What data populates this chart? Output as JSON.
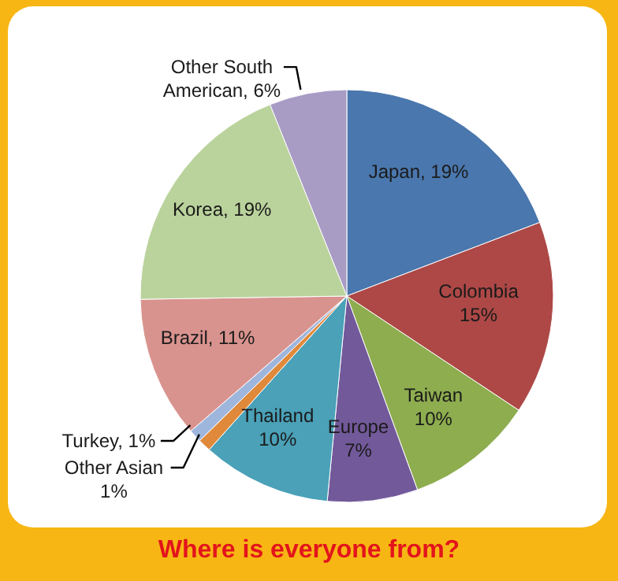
{
  "chart_data": {
    "type": "pie",
    "title": "Where is everyone from?",
    "categories": [
      "Japan",
      "Colombia",
      "Taiwan",
      "Europe",
      "Thailand",
      "Other Asian",
      "Turkey",
      "Brazil",
      "Korea",
      "Other South American"
    ],
    "values": [
      19,
      15,
      10,
      7,
      10,
      1,
      1,
      11,
      19,
      6
    ],
    "value_labels": [
      "19%",
      "15%",
      "10%",
      "7%",
      "10%",
      "1%",
      "1%",
      "11%",
      "19%",
      "6%"
    ],
    "colors": [
      "#4a77ad",
      "#ad4846",
      "#8ead4f",
      "#72599a",
      "#4aa1b8",
      "#e0893a",
      "#9fb6dc",
      "#d9938e",
      "#bad39c",
      "#a89bc4"
    ]
  }
}
